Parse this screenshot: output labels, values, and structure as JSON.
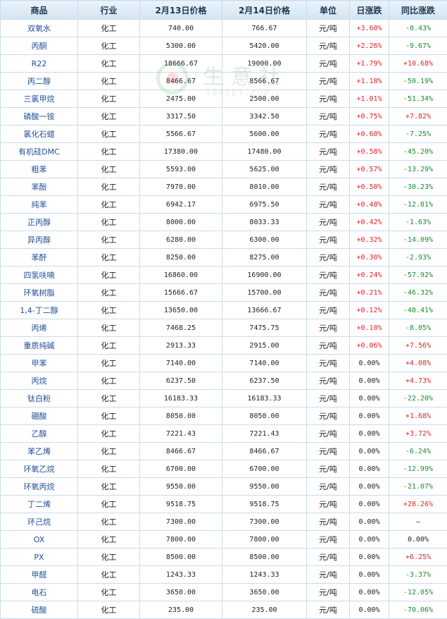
{
  "headers": [
    "商品",
    "行业",
    "2月13日价格",
    "2月14日价格",
    "单位",
    "日涨跌",
    "同比涨跌"
  ],
  "rows": [
    {
      "name": "双氧水",
      "industry": "化工",
      "price1": "740.00",
      "price2": "766.67",
      "unit": "元/吨",
      "daily": "+3.60%",
      "yoy": "-0.43%"
    },
    {
      "name": "丙酮",
      "industry": "化工",
      "price1": "5300.00",
      "price2": "5420.00",
      "unit": "元/吨",
      "daily": "+2.26%",
      "yoy": "-9.67%"
    },
    {
      "name": "R22",
      "industry": "化工",
      "price1": "18666.67",
      "price2": "19000.00",
      "unit": "元/吨",
      "daily": "+1.79%",
      "yoy": "+10.68%"
    },
    {
      "name": "丙二醇",
      "industry": "化工",
      "price1": "8466.67",
      "price2": "8566.67",
      "unit": "元/吨",
      "daily": "+1.18%",
      "yoy": "-50.19%"
    },
    {
      "name": "三氯甲烷",
      "industry": "化工",
      "price1": "2475.00",
      "price2": "2500.00",
      "unit": "元/吨",
      "daily": "+1.01%",
      "yoy": "-51.34%"
    },
    {
      "name": "磷酸一铵",
      "industry": "化工",
      "price1": "3317.50",
      "price2": "3342.50",
      "unit": "元/吨",
      "daily": "+0.75%",
      "yoy": "+7.82%"
    },
    {
      "name": "氯化石蜡",
      "industry": "化工",
      "price1": "5566.67",
      "price2": "5600.00",
      "unit": "元/吨",
      "daily": "+0.60%",
      "yoy": "-7.25%"
    },
    {
      "name": "有机硅DMC",
      "industry": "化工",
      "price1": "17380.00",
      "price2": "17480.00",
      "unit": "元/吨",
      "daily": "+0.58%",
      "yoy": "-45.20%"
    },
    {
      "name": "粗苯",
      "industry": "化工",
      "price1": "5593.00",
      "price2": "5625.00",
      "unit": "元/吨",
      "daily": "+0.57%",
      "yoy": "-13.29%"
    },
    {
      "name": "苯酚",
      "industry": "化工",
      "price1": "7970.00",
      "price2": "8010.00",
      "unit": "元/吨",
      "daily": "+0.50%",
      "yoy": "-30.23%"
    },
    {
      "name": "纯苯",
      "industry": "化工",
      "price1": "6942.17",
      "price2": "6975.50",
      "unit": "元/吨",
      "daily": "+0.48%",
      "yoy": "-12.81%"
    },
    {
      "name": "正丙醇",
      "industry": "化工",
      "price1": "8000.00",
      "price2": "8033.33",
      "unit": "元/吨",
      "daily": "+0.42%",
      "yoy": "-1.63%"
    },
    {
      "name": "异丙醇",
      "industry": "化工",
      "price1": "6280.00",
      "price2": "6300.00",
      "unit": "元/吨",
      "daily": "+0.32%",
      "yoy": "-14.09%"
    },
    {
      "name": "苯酐",
      "industry": "化工",
      "price1": "8250.00",
      "price2": "8275.00",
      "unit": "元/吨",
      "daily": "+0.30%",
      "yoy": "-2.93%"
    },
    {
      "name": "四氢呋喃",
      "industry": "化工",
      "price1": "16860.00",
      "price2": "16900.00",
      "unit": "元/吨",
      "daily": "+0.24%",
      "yoy": "-57.92%"
    },
    {
      "name": "环氧树脂",
      "industry": "化工",
      "price1": "15666.67",
      "price2": "15700.00",
      "unit": "元/吨",
      "daily": "+0.21%",
      "yoy": "-46.32%"
    },
    {
      "name": "1,4-丁二醇",
      "industry": "化工",
      "price1": "13650.00",
      "price2": "13666.67",
      "unit": "元/吨",
      "daily": "+0.12%",
      "yoy": "-48.41%"
    },
    {
      "name": "丙烯",
      "industry": "化工",
      "price1": "7468.25",
      "price2": "7475.75",
      "unit": "元/吨",
      "daily": "+0.10%",
      "yoy": "-8.05%"
    },
    {
      "name": "重质纯碱",
      "industry": "化工",
      "price1": "2913.33",
      "price2": "2915.00",
      "unit": "元/吨",
      "daily": "+0.06%",
      "yoy": "+7.56%"
    },
    {
      "name": "甲苯",
      "industry": "化工",
      "price1": "7140.00",
      "price2": "7140.00",
      "unit": "元/吨",
      "daily": "0.00%",
      "yoy": "+4.08%"
    },
    {
      "name": "丙烷",
      "industry": "化工",
      "price1": "6237.50",
      "price2": "6237.50",
      "unit": "元/吨",
      "daily": "0.00%",
      "yoy": "+4.73%"
    },
    {
      "name": "钛白粉",
      "industry": "化工",
      "price1": "16183.33",
      "price2": "16183.33",
      "unit": "元/吨",
      "daily": "0.00%",
      "yoy": "-22.20%"
    },
    {
      "name": "硼酸",
      "industry": "化工",
      "price1": "8050.00",
      "price2": "8050.00",
      "unit": "元/吨",
      "daily": "0.00%",
      "yoy": "+1.68%"
    },
    {
      "name": "乙醇",
      "industry": "化工",
      "price1": "7221.43",
      "price2": "7221.43",
      "unit": "元/吨",
      "daily": "0.00%",
      "yoy": "+3.72%"
    },
    {
      "name": "苯乙烯",
      "industry": "化工",
      "price1": "8466.67",
      "price2": "8466.67",
      "unit": "元/吨",
      "daily": "0.00%",
      "yoy": "-6.24%"
    },
    {
      "name": "环氧乙烷",
      "industry": "化工",
      "price1": "6700.00",
      "price2": "6700.00",
      "unit": "元/吨",
      "daily": "0.00%",
      "yoy": "-12.99%"
    },
    {
      "name": "环氧丙烷",
      "industry": "化工",
      "price1": "9550.00",
      "price2": "9550.00",
      "unit": "元/吨",
      "daily": "0.00%",
      "yoy": "-21.07%"
    },
    {
      "name": "丁二烯",
      "industry": "化工",
      "price1": "9518.75",
      "price2": "9518.75",
      "unit": "元/吨",
      "daily": "0.00%",
      "yoy": "+28.26%"
    },
    {
      "name": "环己烷",
      "industry": "化工",
      "price1": "7300.00",
      "price2": "7300.00",
      "unit": "元/吨",
      "daily": "0.00%",
      "yoy": "—"
    },
    {
      "name": "OX",
      "industry": "化工",
      "price1": "7800.00",
      "price2": "7800.00",
      "unit": "元/吨",
      "daily": "0.00%",
      "yoy": "0.00%"
    },
    {
      "name": "PX",
      "industry": "化工",
      "price1": "8500.00",
      "price2": "8500.00",
      "unit": "元/吨",
      "daily": "0.00%",
      "yoy": "+6.25%"
    },
    {
      "name": "甲醛",
      "industry": "化工",
      "price1": "1243.33",
      "price2": "1243.33",
      "unit": "元/吨",
      "daily": "0.00%",
      "yoy": "-3.37%"
    },
    {
      "name": "电石",
      "industry": "化工",
      "price1": "3650.00",
      "price2": "3650.00",
      "unit": "元/吨",
      "daily": "0.00%",
      "yoy": "-12.05%"
    },
    {
      "name": "硫酸",
      "industry": "化工",
      "price1": "235.00",
      "price2": "235.00",
      "unit": "元/吨",
      "daily": "0.00%",
      "yoy": "-70.06%"
    }
  ],
  "watermark": {
    "text": "生意社",
    "url": "100ppi.com",
    "colors": {
      "ring": "#3aa64a",
      "dot": "#e3342f"
    }
  },
  "colors": {
    "up": "#e0242c",
    "down": "#1d8a35",
    "name_link": "#1f4e9a",
    "header_bg": "#d3e5f3",
    "border": "#c9dcea"
  }
}
